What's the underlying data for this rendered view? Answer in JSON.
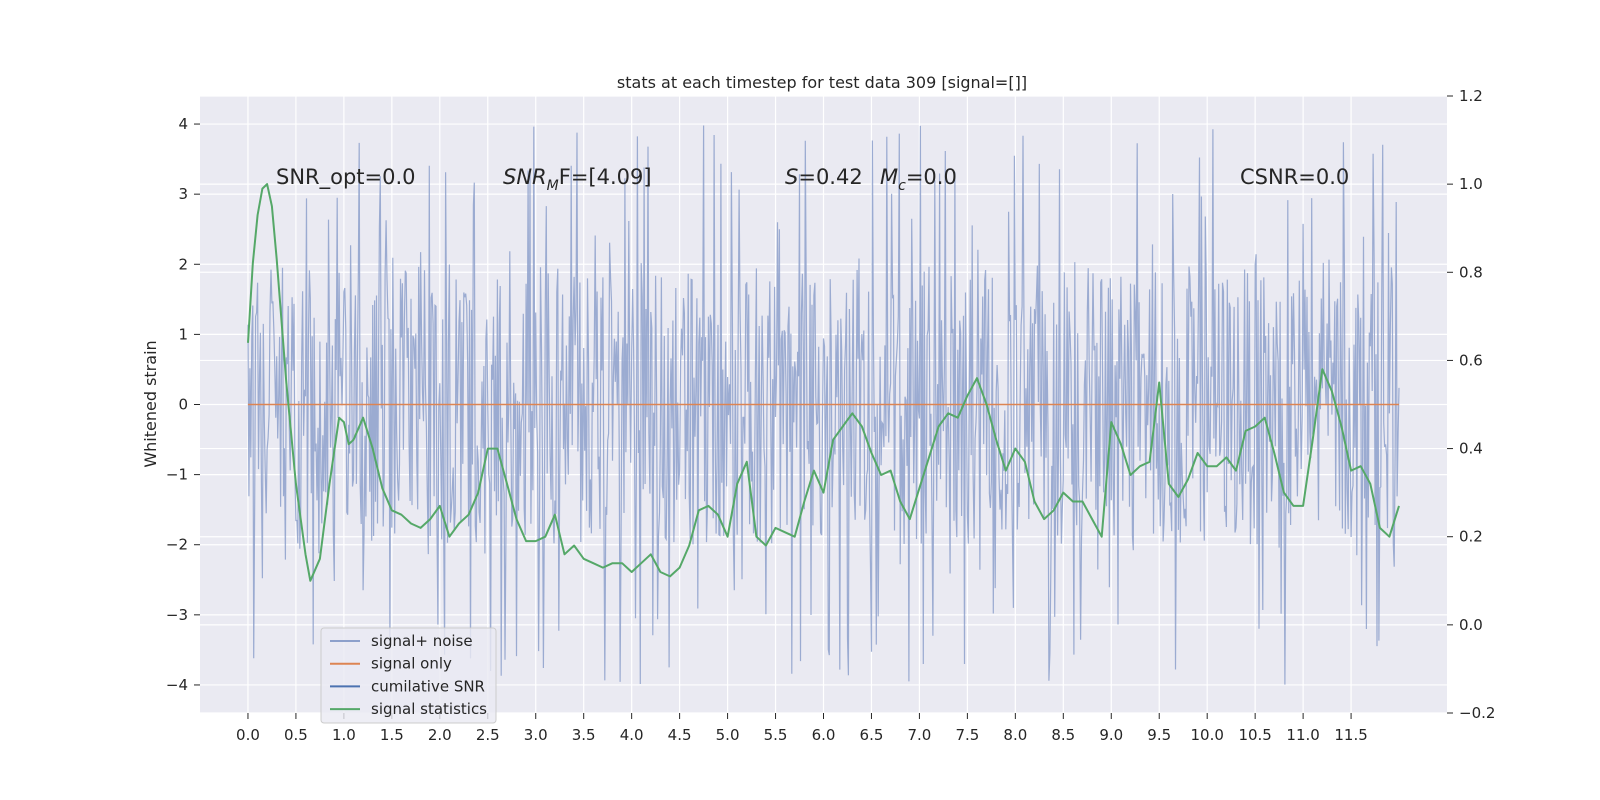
{
  "chart_data": {
    "type": "line",
    "title": "stats at each timestep for test data 309 [signal=[]]",
    "ylabel": "Whitened strain",
    "xlabel": "",
    "xlim": [
      -0.5,
      12.5
    ],
    "ylim": [
      -4.4,
      4.4
    ],
    "y2lim": [
      -0.2,
      1.2
    ],
    "grid": true,
    "legend_position": "lower-left",
    "x_ticks": [
      0.0,
      0.5,
      1.0,
      1.5,
      2.0,
      2.5,
      3.0,
      3.5,
      4.0,
      4.5,
      5.0,
      5.5,
      6.0,
      6.5,
      7.0,
      7.5,
      8.0,
      8.5,
      9.0,
      9.5,
      10.0,
      10.5,
      11.0,
      11.5
    ],
    "x_tick_labels": [
      "0.0",
      "0.5",
      "1.0",
      "1.5",
      "2.0",
      "2.5",
      "3.0",
      "3.5",
      "4.0",
      "4.5",
      "5.0",
      "5.5",
      "6.0",
      "6.5",
      "7.0",
      "7.5",
      "8.0",
      "8.5",
      "9.0",
      "9.5",
      "10.0",
      "10.5",
      "11.0",
      "11.5"
    ],
    "y_ticks": [
      -4,
      -3,
      -2,
      -1,
      0,
      1,
      2,
      3,
      4
    ],
    "y_tick_labels": [
      "−4",
      "−3",
      "−2",
      "−1",
      "0",
      "1",
      "2",
      "3",
      "4"
    ],
    "y2_ticks": [
      -0.2,
      0.0,
      0.2,
      0.4,
      0.6,
      0.8,
      1.0,
      1.2
    ],
    "y2_tick_labels": [
      "−0.2",
      "0.0",
      "0.2",
      "0.4",
      "0.6",
      "0.8",
      "1.0",
      "1.2"
    ],
    "annotations": {
      "snr_opt": "SNR_opt=0.0",
      "snr_mf_main": "SNR",
      "snr_mf_sub": "M",
      "snr_mf_rest": "F=[4.09]",
      "s_label": "S",
      "s_value": "=0.42",
      "mc_label": "M",
      "mc_sub": "c",
      "mc_value": "=0.0",
      "csnr": "CSNR=0.0"
    },
    "legend": [
      {
        "label": "signal+ noise",
        "color": "#8da0cb"
      },
      {
        "label": "signal only",
        "color": "#dd8452"
      },
      {
        "label": "cumilative SNR",
        "color": "#4c72b0"
      },
      {
        "label": "signal statistics",
        "color": "#55a868"
      }
    ],
    "noise_series": {
      "name": "signal+ noise",
      "t_start": 0.0,
      "t_end": 12.0,
      "samples": 1200,
      "band": [
        -2.0,
        2.0
      ],
      "y_range": [
        -4.0,
        4.1
      ],
      "color": "#8da0cb"
    },
    "signal_only": {
      "name": "signal only",
      "x": [
        0.0,
        12.0
      ],
      "y": [
        0.0,
        0.0
      ],
      "color": "#dd8452"
    },
    "series": [
      {
        "name": "signal statistics",
        "axis": "right",
        "color": "#55a868",
        "x": [
          0.0,
          0.05,
          0.1,
          0.15,
          0.2,
          0.25,
          0.3,
          0.4,
          0.5,
          0.6,
          0.65,
          0.75,
          0.85,
          0.95,
          1.0,
          1.05,
          1.1,
          1.2,
          1.3,
          1.4,
          1.5,
          1.6,
          1.7,
          1.8,
          1.9,
          2.0,
          2.1,
          2.2,
          2.3,
          2.4,
          2.5,
          2.6,
          2.7,
          2.8,
          2.9,
          3.0,
          3.1,
          3.2,
          3.3,
          3.4,
          3.5,
          3.6,
          3.7,
          3.8,
          3.9,
          4.0,
          4.1,
          4.2,
          4.3,
          4.4,
          4.5,
          4.6,
          4.7,
          4.8,
          4.9,
          5.0,
          5.1,
          5.2,
          5.3,
          5.4,
          5.5,
          5.6,
          5.7,
          5.8,
          5.9,
          6.0,
          6.1,
          6.2,
          6.3,
          6.4,
          6.5,
          6.6,
          6.7,
          6.8,
          6.9,
          7.0,
          7.1,
          7.2,
          7.3,
          7.4,
          7.5,
          7.6,
          7.7,
          7.8,
          7.9,
          8.0,
          8.1,
          8.2,
          8.3,
          8.4,
          8.5,
          8.6,
          8.7,
          8.8,
          8.9,
          9.0,
          9.1,
          9.2,
          9.3,
          9.4,
          9.5,
          9.6,
          9.7,
          9.8,
          9.9,
          10.0,
          10.1,
          10.2,
          10.3,
          10.4,
          10.5,
          10.6,
          10.7,
          10.8,
          10.9,
          11.0,
          11.1,
          11.2,
          11.3,
          11.4,
          11.5,
          11.6,
          11.7,
          11.8,
          11.9,
          12.0
        ],
        "y": [
          0.64,
          0.82,
          0.93,
          0.99,
          1.0,
          0.95,
          0.83,
          0.55,
          0.32,
          0.16,
          0.1,
          0.15,
          0.32,
          0.47,
          0.46,
          0.41,
          0.42,
          0.47,
          0.4,
          0.31,
          0.26,
          0.25,
          0.23,
          0.22,
          0.24,
          0.27,
          0.2,
          0.23,
          0.25,
          0.3,
          0.4,
          0.4,
          0.32,
          0.24,
          0.19,
          0.19,
          0.2,
          0.25,
          0.16,
          0.18,
          0.15,
          0.14,
          0.13,
          0.14,
          0.14,
          0.12,
          0.14,
          0.16,
          0.12,
          0.11,
          0.13,
          0.18,
          0.26,
          0.27,
          0.25,
          0.2,
          0.32,
          0.37,
          0.2,
          0.18,
          0.22,
          0.21,
          0.2,
          0.28,
          0.35,
          0.3,
          0.42,
          0.45,
          0.48,
          0.45,
          0.39,
          0.34,
          0.35,
          0.28,
          0.24,
          0.31,
          0.38,
          0.45,
          0.48,
          0.47,
          0.52,
          0.56,
          0.5,
          0.42,
          0.35,
          0.4,
          0.37,
          0.28,
          0.24,
          0.26,
          0.3,
          0.28,
          0.28,
          0.24,
          0.2,
          0.46,
          0.41,
          0.34,
          0.36,
          0.37,
          0.55,
          0.32,
          0.29,
          0.33,
          0.39,
          0.36,
          0.36,
          0.38,
          0.35,
          0.44,
          0.45,
          0.47,
          0.39,
          0.3,
          0.27,
          0.27,
          0.42,
          0.58,
          0.53,
          0.45,
          0.35,
          0.36,
          0.32,
          0.22,
          0.2,
          0.27
        ]
      }
    ]
  }
}
